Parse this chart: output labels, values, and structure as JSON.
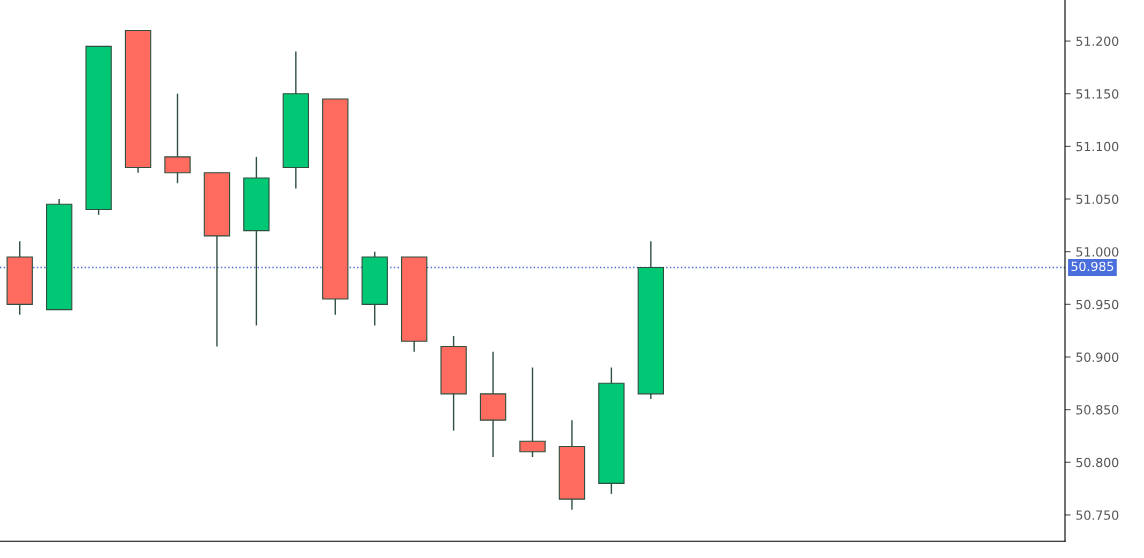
{
  "chart_data": {
    "type": "candlestick",
    "categories": [
      null,
      null,
      null,
      null,
      null,
      null,
      null,
      null,
      null,
      null,
      null,
      null,
      null,
      null,
      null,
      null,
      null,
      null,
      null,
      null,
      null,
      null,
      null,
      null,
      null,
      null,
      null
    ],
    "ohlc": [
      [
        50.995,
        51.01,
        50.94,
        50.95
      ],
      [
        50.945,
        51.05,
        50.945,
        51.045
      ],
      [
        51.04,
        51.195,
        51.035,
        51.195
      ],
      [
        51.21,
        51.21,
        51.075,
        51.08
      ],
      [
        51.09,
        51.15,
        51.065,
        51.075
      ],
      [
        51.075,
        51.075,
        50.91,
        51.015
      ],
      [
        51.02,
        51.09,
        50.93,
        51.07
      ],
      [
        51.08,
        51.19,
        51.06,
        51.15
      ],
      [
        51.145,
        51.145,
        50.94,
        50.955
      ],
      [
        50.95,
        51.0,
        50.93,
        50.995
      ],
      [
        50.995,
        50.995,
        50.905,
        50.915
      ],
      [
        50.91,
        50.92,
        50.83,
        50.865
      ],
      [
        50.865,
        50.905,
        50.805,
        50.84
      ],
      [
        50.82,
        50.89,
        50.805,
        50.81
      ],
      [
        50.815,
        50.84,
        50.755,
        50.765
      ],
      [
        50.78,
        50.89,
        50.77,
        50.875
      ],
      [
        50.865,
        51.01,
        50.86,
        50.985
      ],
      null,
      null,
      null,
      null,
      null,
      null,
      null,
      null,
      null,
      null
    ],
    "colors": [
      "#ff6b5e",
      "#00c875",
      "#00c875",
      "#ff6b5e",
      "#ff6b5e",
      "#ff6b5e",
      "#00c875",
      "#00c875",
      "#ff6b5e",
      "#00c875",
      "#ff6b5e",
      "#ff6b5e",
      "#ff6b5e",
      "#ff6b5e",
      "#ff6b5e",
      "#00c875",
      "#00c875",
      null,
      null,
      null,
      null,
      null,
      null,
      null,
      null,
      null,
      null
    ],
    "ylim": [
      50.725,
      51.239
    ],
    "yticks": [
      {
        "value": 50.75,
        "label": "50.750"
      },
      {
        "value": 50.8,
        "label": "50.800"
      },
      {
        "value": 50.85,
        "label": "50.850"
      },
      {
        "value": 50.9,
        "label": "50.900"
      },
      {
        "value": 50.95,
        "label": "50.950"
      },
      {
        "value": 51.0,
        "label": "51.000"
      },
      {
        "value": 51.05,
        "label": "51.050"
      },
      {
        "value": 51.1,
        "label": "51.100"
      },
      {
        "value": 51.15,
        "label": "51.150"
      },
      {
        "value": 51.2,
        "label": "51.200"
      }
    ],
    "ref_lines": [
      {
        "axis": "y",
        "value": 50.985,
        "label": "50.985",
        "color": "#4a6fdc",
        "line_style": "dotted"
      }
    ],
    "grid": false,
    "tick_labels": "y"
  }
}
